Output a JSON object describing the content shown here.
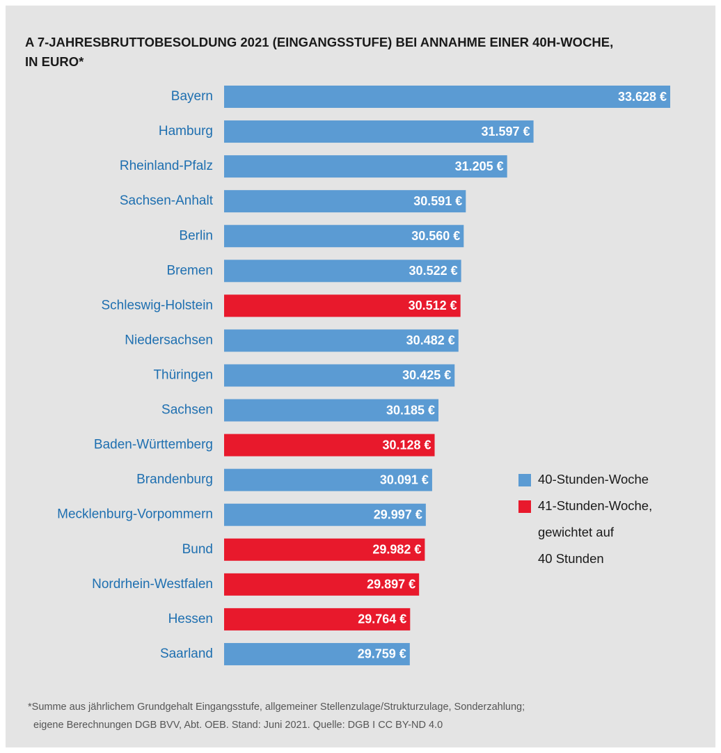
{
  "chart_data": {
    "type": "barh",
    "title": [
      "A 7-JAHRESBRUTTOBESOLDUNG 2021 (EINGANGSSTUFE) BEI ANNAHME EINER 40H-WOCHE,",
      "IN EURO*"
    ],
    "categories": [
      "Bayern",
      "Hamburg",
      "Rheinland-Pfalz",
      "Sachsen-Anhalt",
      "Berlin",
      "Bremen",
      "Schleswig-Holstein",
      "Niedersachsen",
      "Thüringen",
      "Sachsen",
      "Baden-Württemberg",
      "Brandenburg",
      "Mecklenburg-Vorpommern",
      "Bund",
      "Nordrhein-Westfalen",
      "Hessen",
      "Saarland"
    ],
    "values": [
      33628,
      31597,
      31205,
      30591,
      30560,
      30522,
      30512,
      30482,
      30425,
      30185,
      30128,
      30091,
      29997,
      29982,
      29897,
      29764,
      29759
    ],
    "value_labels": [
      "33.628 €",
      "31.597 €",
      "31.205 €",
      "30.591 €",
      "30.560 €",
      "30.522 €",
      "30.512 €",
      "30.482 €",
      "30.425 €",
      "30.185 €",
      "30.128 €",
      "30.091 €",
      "29.997 €",
      "29.982 €",
      "29.897 €",
      "29.764 €",
      "29.759 €"
    ],
    "colors": [
      "#5b9bd3",
      "#5b9bd3",
      "#5b9bd3",
      "#5b9bd3",
      "#5b9bd3",
      "#5b9bd3",
      "#e8192c",
      "#5b9bd3",
      "#5b9bd3",
      "#5b9bd3",
      "#e8192c",
      "#5b9bd3",
      "#5b9bd3",
      "#e8192c",
      "#e8192c",
      "#e8192c",
      "#5b9bd3"
    ],
    "xlim": [
      27000,
      34000
    ],
    "legend": [
      {
        "name": [
          "40-Stunden-Woche"
        ],
        "color": "#5b9bd3"
      },
      {
        "name": [
          "41-Stunden-Woche,",
          "gewichtet auf",
          "40 Stunden"
        ],
        "color": "#e8192c"
      }
    ],
    "footnote": [
      "*Summe aus jährlichem Grundgehalt Eingangsstufe, allgemeiner Stellenzulage/Strukturzulage, Sonderzahlung;",
      "eigene Berechnungen DGB BVV, Abt. OEB. Stand: Juni 2021. Quelle: DGB I CC BY-ND 4.0"
    ]
  }
}
